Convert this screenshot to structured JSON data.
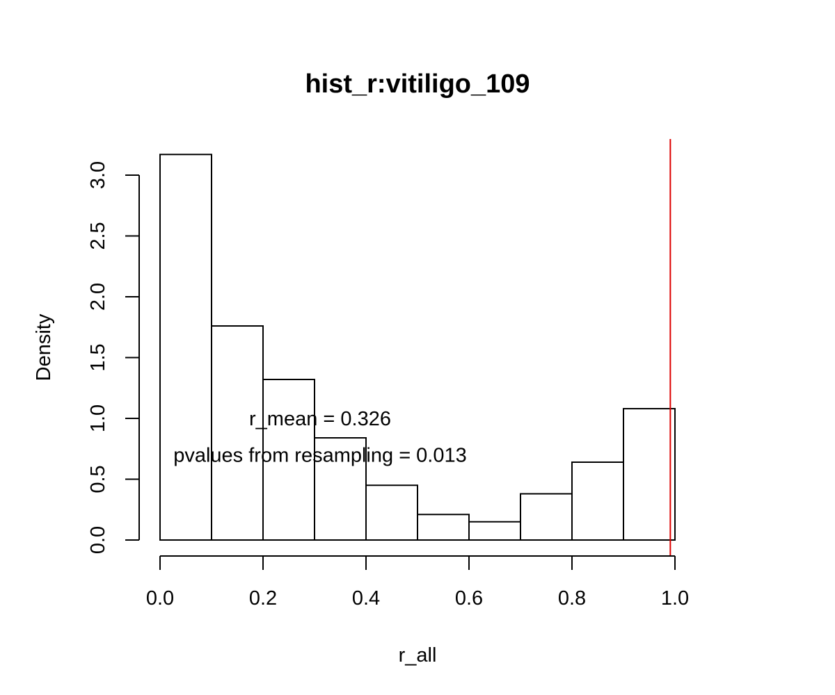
{
  "chart_data": {
    "type": "bar",
    "title": "hist_r:vitiligo_109",
    "xlabel": "r_all",
    "ylabel": "Density",
    "bin_edges": [
      0.0,
      0.1,
      0.2,
      0.3,
      0.4,
      0.5,
      0.6,
      0.7,
      0.8,
      0.9,
      1.0
    ],
    "values": [
      3.17,
      1.76,
      1.32,
      0.84,
      0.45,
      0.21,
      0.15,
      0.38,
      0.64,
      1.08
    ],
    "xlim": [
      0.0,
      1.0
    ],
    "ylim": [
      0.0,
      3.0
    ],
    "x_ticks": [
      "0.0",
      "0.2",
      "0.4",
      "0.6",
      "0.8",
      "1.0"
    ],
    "y_ticks": [
      "0.0",
      "0.5",
      "1.0",
      "1.5",
      "2.0",
      "2.5",
      "3.0"
    ],
    "reference_line": {
      "x": 0.991,
      "color": "#dd0000"
    },
    "annotations": [
      {
        "text": "r_mean = 0.326",
        "x": 0.3,
        "y": 1.0
      },
      {
        "text": "pvalues from resampling = 0.013",
        "x": 0.3,
        "y": 0.7
      }
    ],
    "grid": false,
    "legend": "none"
  }
}
